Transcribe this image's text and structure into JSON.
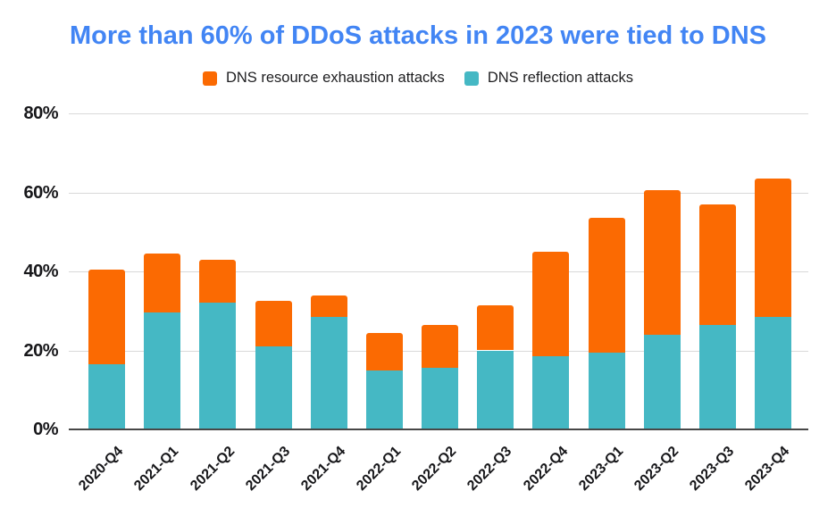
{
  "title": {
    "text": "More than 60% of DDoS attacks in 2023 were tied to DNS",
    "color": "#4285F4"
  },
  "legend": {
    "items": [
      {
        "label": "DNS resource exhaustion attacks",
        "color": "#FB6A02"
      },
      {
        "label": "DNS reflection attacks",
        "color": "#45B8C4"
      }
    ]
  },
  "chart_data": {
    "type": "bar",
    "stacked": true,
    "title": "More than 60% of DDoS attacks in 2023 were tied to DNS",
    "categories": [
      "2020-Q4",
      "2021-Q1",
      "2021-Q2",
      "2021-Q3",
      "2021-Q4",
      "2022-Q1",
      "2022-Q2",
      "2022-Q3",
      "2022-Q4",
      "2023-Q1",
      "2023-Q2",
      "2023-Q3",
      "2023-Q4"
    ],
    "series": [
      {
        "name": "DNS reflection attacks",
        "color": "#45B8C4",
        "values": [
          16.5,
          29.5,
          32,
          21,
          28.5,
          15,
          15.5,
          20,
          18.5,
          19.5,
          24,
          26.5,
          28.5
        ]
      },
      {
        "name": "DNS resource exhaustion attacks",
        "color": "#FB6A02",
        "values": [
          24,
          15,
          11,
          11.5,
          5.5,
          9.5,
          11,
          11.5,
          26.5,
          34,
          36.5,
          30.5,
          35
        ]
      }
    ],
    "totals": [
      40.5,
      44.5,
      43,
      32.5,
      34,
      24.5,
      26.5,
      31.5,
      45,
      53.5,
      60.5,
      57,
      63.5
    ],
    "xlabel": "",
    "ylabel": "",
    "ylim": [
      0,
      80
    ],
    "ytick_values": [
      0,
      20,
      40,
      60,
      80
    ],
    "ytick_labels": [
      "0%",
      "20%",
      "40%",
      "60%",
      "80%"
    ],
    "grid": true,
    "legend_position": "top"
  }
}
